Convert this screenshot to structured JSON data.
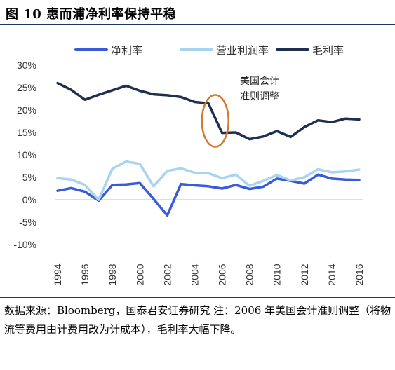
{
  "figure": {
    "title": "图 10  惠而浦净利率保持平稳",
    "source_note": "数据来源：Bloomberg，国泰君安证券研究 注：2006 年美国会计准则调整（将物流等费用由计费用改为计成本），毛利率大幅下降。"
  },
  "colors": {
    "net": "#3a5bd9",
    "operating": "#a9d4f0",
    "gross": "#1f2f4f",
    "circle": "#d9772b",
    "axis": "#bfbfbf"
  },
  "chart_data": {
    "type": "line",
    "title": "",
    "xlabel": "",
    "ylabel": "",
    "x": [
      1994,
      1995,
      1996,
      1997,
      1998,
      1999,
      2000,
      2001,
      2002,
      2003,
      2004,
      2005,
      2006,
      2007,
      2008,
      2009,
      2010,
      2011,
      2012,
      2013,
      2014,
      2015,
      2016
    ],
    "x_ticks": [
      "1994",
      "1996",
      "1998",
      "2000",
      "2002",
      "2004",
      "2006",
      "2008",
      "2010",
      "2012",
      "2014",
      "2016"
    ],
    "y_ticks": [
      "30%",
      "25%",
      "20%",
      "15%",
      "10%",
      "5%",
      "0%",
      "-5%",
      "-10%"
    ],
    "ylim": [
      -10,
      30
    ],
    "legend_position": "top",
    "series": [
      {
        "name": "净利率",
        "color_key": "net",
        "values": [
          2.0,
          2.6,
          1.8,
          -0.2,
          3.3,
          3.4,
          3.7,
          0.2,
          -3.5,
          3.5,
          3.2,
          3.0,
          2.5,
          3.3,
          2.4,
          2.9,
          4.7,
          4.2,
          3.6,
          5.6,
          4.7,
          4.5,
          4.4
        ]
      },
      {
        "name": "营业利润率",
        "color_key": "operating",
        "values": [
          4.8,
          4.5,
          3.3,
          0.0,
          6.9,
          8.5,
          8.0,
          3.0,
          6.4,
          7.0,
          6.0,
          5.9,
          4.8,
          5.6,
          3.1,
          4.2,
          5.5,
          4.3,
          5.0,
          6.8,
          6.1,
          6.3,
          6.7
        ]
      },
      {
        "name": "毛利率",
        "color_key": "gross",
        "values": [
          26.0,
          24.5,
          22.3,
          23.4,
          24.4,
          25.4,
          24.3,
          23.5,
          23.3,
          22.9,
          21.8,
          21.5,
          14.9,
          15.0,
          13.5,
          14.1,
          15.3,
          14.0,
          16.2,
          17.7,
          17.3,
          18.1,
          17.9
        ]
      }
    ],
    "annotations": [
      {
        "text_lines": [
          "美国会计",
          "准则调整"
        ],
        "highlight_years": [
          2005,
          2006
        ]
      }
    ]
  }
}
